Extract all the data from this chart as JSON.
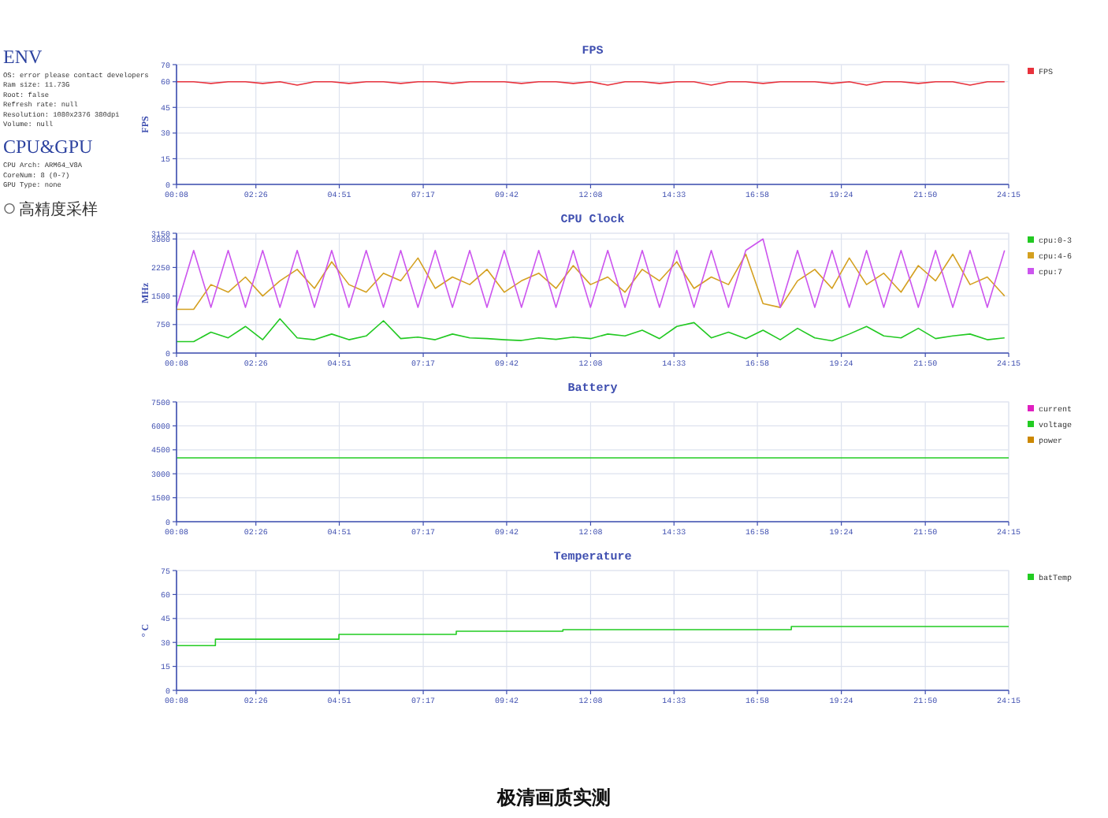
{
  "chart_data": [
    {
      "type": "other",
      "title": "ENV",
      "annotations": [
        "OS: error please contact developers",
        "Ram size: 11.73G",
        "Root: false",
        "Refresh rate: null",
        "Resolution: 1080x2376 380dpi",
        "Volume: null"
      ]
    },
    {
      "type": "other",
      "title": "CPU&GPU",
      "annotations": [
        "CPU Arch: ARM64_V8A",
        "CoreNum: 8 (0-7)",
        "GPU Type: none"
      ]
    },
    {
      "type": "other",
      "annotations": [
        "高精度采样"
      ]
    },
    {
      "type": "line",
      "title": "FPS",
      "ylabel": "FPS",
      "xlim": [
        0.133,
        24.25
      ],
      "ylim": [
        0,
        70
      ],
      "yticks": [
        0,
        15,
        30,
        45,
        60,
        70
      ],
      "xticks": [
        {
          "value": 0.133,
          "label": "00:08"
        },
        {
          "value": 2.433,
          "label": "02:26"
        },
        {
          "value": 4.85,
          "label": "04:51"
        },
        {
          "value": 7.283,
          "label": "07:17"
        },
        {
          "value": 9.7,
          "label": "09:42"
        },
        {
          "value": 12.133,
          "label": "12:08"
        },
        {
          "value": 14.55,
          "label": "14:33"
        },
        {
          "value": 16.967,
          "label": "16:58"
        },
        {
          "value": 19.4,
          "label": "19:24"
        },
        {
          "value": 21.833,
          "label": "21:50"
        },
        {
          "value": 24.25,
          "label": "24:15"
        }
      ],
      "grid": true,
      "legend": "top right",
      "marker": "none",
      "line_style": "solid",
      "x": [
        0.133,
        0.63,
        1.13,
        1.63,
        2.13,
        2.63,
        3.13,
        3.63,
        4.13,
        4.63,
        5.13,
        5.63,
        6.13,
        6.63,
        7.13,
        7.63,
        8.13,
        8.63,
        9.13,
        9.63,
        10.13,
        10.63,
        11.13,
        11.63,
        12.13,
        12.63,
        13.13,
        13.63,
        14.13,
        14.63,
        15.13,
        15.63,
        16.13,
        16.63,
        17.13,
        17.63,
        18.13,
        18.63,
        19.13,
        19.63,
        20.13,
        20.63,
        21.13,
        21.63,
        22.13,
        22.63,
        23.13,
        23.63,
        24.13
      ],
      "series": [
        {
          "name": "FPS",
          "color": "#e8323c",
          "values": [
            60,
            60,
            59,
            60,
            60,
            59,
            60,
            58,
            60,
            60,
            59,
            60,
            60,
            59,
            60,
            60,
            59,
            60,
            60,
            60,
            59,
            60,
            60,
            59,
            60,
            58,
            60,
            60,
            59,
            60,
            60,
            58,
            60,
            60,
            59,
            60,
            60,
            60,
            59,
            60,
            58,
            60,
            60,
            59,
            60,
            60,
            58,
            60,
            60
          ]
        }
      ]
    },
    {
      "type": "line",
      "title": "CPU Clock",
      "ylabel": "MHz",
      "xlim": [
        0.133,
        24.25
      ],
      "ylim": [
        0,
        3150
      ],
      "yticks": [
        0,
        750,
        1500,
        2250,
        3000,
        3150
      ],
      "xticks": [
        {
          "value": 0.133,
          "label": "00:08"
        },
        {
          "value": 2.433,
          "label": "02:26"
        },
        {
          "value": 4.85,
          "label": "04:51"
        },
        {
          "value": 7.283,
          "label": "07:17"
        },
        {
          "value": 9.7,
          "label": "09:42"
        },
        {
          "value": 12.133,
          "label": "12:08"
        },
        {
          "value": 14.55,
          "label": "14:33"
        },
        {
          "value": 16.967,
          "label": "16:58"
        },
        {
          "value": 19.4,
          "label": "19:24"
        },
        {
          "value": 21.833,
          "label": "21:50"
        },
        {
          "value": 24.25,
          "label": "24:15"
        }
      ],
      "grid": true,
      "legend": "top right",
      "marker": "none",
      "line_style": "solid",
      "x": [
        0.133,
        0.63,
        1.13,
        1.63,
        2.13,
        2.63,
        3.13,
        3.63,
        4.13,
        4.63,
        5.13,
        5.63,
        6.13,
        6.63,
        7.13,
        7.63,
        8.13,
        8.63,
        9.13,
        9.63,
        10.13,
        10.63,
        11.13,
        11.63,
        12.13,
        12.63,
        13.13,
        13.63,
        14.13,
        14.63,
        15.13,
        15.63,
        16.13,
        16.63,
        17.13,
        17.63,
        18.13,
        18.63,
        19.13,
        19.63,
        20.13,
        20.63,
        21.13,
        21.63,
        22.13,
        22.63,
        23.13,
        23.63,
        24.13
      ],
      "series": [
        {
          "name": "cpu:0-3",
          "color": "#22c922",
          "values": [
            300,
            300,
            550,
            400,
            700,
            350,
            900,
            400,
            350,
            500,
            350,
            450,
            850,
            380,
            420,
            350,
            500,
            400,
            380,
            350,
            330,
            400,
            360,
            420,
            380,
            500,
            450,
            600,
            380,
            700,
            800,
            400,
            550,
            380,
            600,
            350,
            650,
            400,
            320,
            500,
            700,
            450,
            400,
            650,
            380,
            450,
            500,
            350,
            400
          ]
        },
        {
          "name": "cpu:4-6",
          "color": "#d4a020",
          "values": [
            1150,
            1150,
            1800,
            1600,
            2000,
            1500,
            1900,
            2200,
            1700,
            2400,
            1800,
            1600,
            2100,
            1900,
            2500,
            1700,
            2000,
            1800,
            2200,
            1600,
            1900,
            2100,
            1700,
            2300,
            1800,
            2000,
            1600,
            2200,
            1900,
            2400,
            1700,
            2000,
            1800,
            2600,
            1300,
            1200,
            1900,
            2200,
            1700,
            2500,
            1800,
            2100,
            1600,
            2300,
            1900,
            2600,
            1800,
            2000,
            1500
          ]
        },
        {
          "name": "cpu:7",
          "color": "#cc55ee",
          "values": [
            1200,
            2700,
            1200,
            2700,
            1200,
            2700,
            1200,
            2700,
            1200,
            2700,
            1200,
            2700,
            1200,
            2700,
            1200,
            2700,
            1200,
            2700,
            1200,
            2700,
            1200,
            2700,
            1200,
            2700,
            1200,
            2700,
            1200,
            2700,
            1200,
            2700,
            1200,
            2700,
            1200,
            2700,
            3000,
            1200,
            2700,
            1200,
            2700,
            1200,
            2700,
            1200,
            2700,
            1200,
            2700,
            1200,
            2700,
            1200,
            2700
          ]
        }
      ]
    },
    {
      "type": "line",
      "title": "Battery",
      "xlim": [
        0.133,
        24.25
      ],
      "ylim": [
        0,
        7500
      ],
      "yticks": [
        0,
        1500,
        3000,
        4500,
        6000,
        7500
      ],
      "xticks": [
        {
          "value": 0.133,
          "label": "00:08"
        },
        {
          "value": 2.433,
          "label": "02:26"
        },
        {
          "value": 4.85,
          "label": "04:51"
        },
        {
          "value": 7.283,
          "label": "07:17"
        },
        {
          "value": 9.7,
          "label": "09:42"
        },
        {
          "value": 12.133,
          "label": "12:08"
        },
        {
          "value": 14.55,
          "label": "14:33"
        },
        {
          "value": 16.967,
          "label": "16:58"
        },
        {
          "value": 19.4,
          "label": "19:24"
        },
        {
          "value": 21.833,
          "label": "21:50"
        },
        {
          "value": 24.25,
          "label": "24:15"
        }
      ],
      "grid": true,
      "legend": "top right",
      "marker": "none",
      "line_style": "solid",
      "x": [
        0.133,
        24.25
      ],
      "series": [
        {
          "name": "current",
          "color": "#e020c0",
          "values": [
            null,
            null
          ]
        },
        {
          "name": "voltage",
          "color": "#22cc22",
          "values": [
            4000,
            4000
          ]
        },
        {
          "name": "power",
          "color": "#cc8800",
          "values": [
            null,
            null
          ]
        }
      ]
    },
    {
      "type": "step",
      "title": "Temperature",
      "ylabel": "° C",
      "xlim": [
        0.133,
        24.25
      ],
      "ylim": [
        0,
        75
      ],
      "yticks": [
        0,
        15,
        30,
        45,
        60,
        75
      ],
      "xticks": [
        {
          "value": 0.133,
          "label": "00:08"
        },
        {
          "value": 2.433,
          "label": "02:26"
        },
        {
          "value": 4.85,
          "label": "04:51"
        },
        {
          "value": 7.283,
          "label": "07:17"
        },
        {
          "value": 9.7,
          "label": "09:42"
        },
        {
          "value": 12.133,
          "label": "12:08"
        },
        {
          "value": 14.55,
          "label": "14:33"
        },
        {
          "value": 16.967,
          "label": "16:58"
        },
        {
          "value": 19.4,
          "label": "19:24"
        },
        {
          "value": 21.833,
          "label": "21:50"
        },
        {
          "value": 24.25,
          "label": "24:15"
        }
      ],
      "grid": true,
      "legend": "top right",
      "marker": "none",
      "line_style": "solid",
      "x": [
        0.133,
        1.26,
        4.84,
        8.24,
        11.33,
        17.95,
        24.25
      ],
      "series": [
        {
          "name": "batTemp",
          "color": "#22cc22",
          "values": [
            28,
            32,
            35,
            37,
            38,
            40,
            40
          ]
        }
      ]
    },
    {
      "type": "other",
      "title": "极清画质实测"
    }
  ]
}
